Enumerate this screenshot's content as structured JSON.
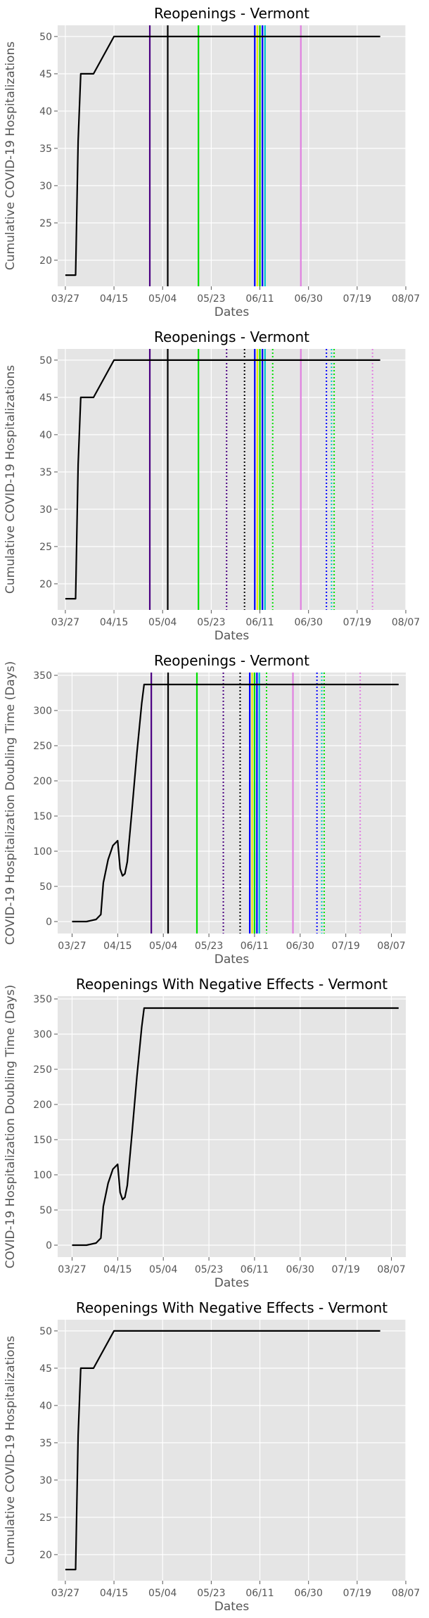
{
  "colors": {
    "panel_bg": "#e5e5e5",
    "grid": "#ffffff",
    "data_line": "#000000",
    "purple": "#4b0082",
    "black": "#000000",
    "green": "#00e000",
    "blue": "#0000ff",
    "yellow": "#e8e800",
    "cyan": "#00c8c8",
    "violet": "#e080e0"
  },
  "chart_data": [
    {
      "type": "line",
      "title": "Reopenings - Vermont",
      "xlabel": "Dates",
      "ylabel": "Cumulative COVID-19 Hospitalizations",
      "xticks": [
        "03/27",
        "04/15",
        "05/04",
        "05/23",
        "06/11",
        "06/30",
        "07/19",
        "08/07"
      ],
      "yticks": [
        20,
        25,
        30,
        35,
        40,
        45,
        50
      ],
      "xlim": [
        "03/24",
        "08/07"
      ],
      "ylim": [
        16.5,
        51.5
      ],
      "grid": true,
      "series": [
        {
          "color": "#000000",
          "points": [
            [
              "03/27",
              18
            ],
            [
              "03/31",
              18
            ],
            [
              "04/01",
              36
            ],
            [
              "04/02",
              45
            ],
            [
              "04/07",
              45
            ],
            [
              "04/15",
              50
            ],
            [
              "07/28",
              50
            ]
          ]
        }
      ],
      "vlines": [
        {
          "date": "04/29",
          "color": "#4b0082",
          "style": "solid"
        },
        {
          "date": "05/06",
          "color": "#000000",
          "style": "solid"
        },
        {
          "date": "05/18",
          "color": "#00e000",
          "style": "solid"
        },
        {
          "date": "06/09",
          "color": "#0000ff",
          "style": "solid"
        },
        {
          "date": "06/10",
          "color": "#e8e800",
          "style": "solid"
        },
        {
          "date": "06/11",
          "color": "#00e000",
          "style": "solid"
        },
        {
          "date": "06/12",
          "color": "#0000ff",
          "style": "solid"
        },
        {
          "date": "06/13",
          "color": "#00c8c8",
          "style": "solid"
        },
        {
          "date": "06/27",
          "color": "#e080e0",
          "style": "solid"
        }
      ]
    },
    {
      "type": "line",
      "title": "Reopenings - Vermont",
      "xlabel": "Dates",
      "ylabel": "Cumulative COVID-19 Hospitalizations",
      "xticks": [
        "03/27",
        "04/15",
        "05/04",
        "05/23",
        "06/11",
        "06/30",
        "07/19",
        "08/07"
      ],
      "yticks": [
        20,
        25,
        30,
        35,
        40,
        45,
        50
      ],
      "xlim": [
        "03/24",
        "08/07"
      ],
      "ylim": [
        16.5,
        51.5
      ],
      "grid": true,
      "series": [
        {
          "color": "#000000",
          "points": [
            [
              "03/27",
              18
            ],
            [
              "03/31",
              18
            ],
            [
              "04/01",
              36
            ],
            [
              "04/02",
              45
            ],
            [
              "04/07",
              45
            ],
            [
              "04/15",
              50
            ],
            [
              "07/28",
              50
            ]
          ]
        }
      ],
      "vlines": [
        {
          "date": "04/29",
          "color": "#4b0082",
          "style": "solid"
        },
        {
          "date": "05/06",
          "color": "#000000",
          "style": "solid"
        },
        {
          "date": "05/18",
          "color": "#00e000",
          "style": "solid"
        },
        {
          "date": "05/29",
          "color": "#4b0082",
          "style": "dotted"
        },
        {
          "date": "06/05",
          "color": "#000000",
          "style": "dotted"
        },
        {
          "date": "06/09",
          "color": "#0000ff",
          "style": "solid"
        },
        {
          "date": "06/10",
          "color": "#e8e800",
          "style": "solid"
        },
        {
          "date": "06/11",
          "color": "#00e000",
          "style": "solid"
        },
        {
          "date": "06/12",
          "color": "#0000ff",
          "style": "solid"
        },
        {
          "date": "06/13",
          "color": "#00c8c8",
          "style": "solid"
        },
        {
          "date": "06/16",
          "color": "#00e000",
          "style": "dotted"
        },
        {
          "date": "06/27",
          "color": "#e080e0",
          "style": "solid"
        },
        {
          "date": "07/07",
          "color": "#0000ff",
          "style": "dotted"
        },
        {
          "date": "07/09",
          "color": "#00c8c8",
          "style": "dotted"
        },
        {
          "date": "07/10",
          "color": "#00e000",
          "style": "dotted"
        },
        {
          "date": "07/25",
          "color": "#e080e0",
          "style": "dotted"
        }
      ]
    },
    {
      "type": "line",
      "title": "Reopenings - Vermont",
      "xlabel": "Dates",
      "ylabel": "COVID-19 Hospitalization Doubling Time (Days)",
      "xticks": [
        "03/27",
        "04/15",
        "05/04",
        "05/23",
        "06/11",
        "06/30",
        "07/19",
        "08/07"
      ],
      "yticks": [
        0,
        50,
        100,
        150,
        200,
        250,
        300,
        350
      ],
      "xlim": [
        "03/21",
        "08/13"
      ],
      "ylim": [
        -17,
        354
      ],
      "grid": true,
      "series": [
        {
          "color": "#000000",
          "points": [
            [
              "03/27",
              0
            ],
            [
              "04/02",
              0
            ],
            [
              "04/06",
              3
            ],
            [
              "04/08",
              10
            ],
            [
              "04/09",
              55
            ],
            [
              "04/11",
              88
            ],
            [
              "04/13",
              108
            ],
            [
              "04/15",
              115
            ],
            [
              "04/16",
              75
            ],
            [
              "04/17",
              65
            ],
            [
              "04/18",
              68
            ],
            [
              "04/19",
              85
            ],
            [
              "04/21",
              160
            ],
            [
              "04/23",
              240
            ],
            [
              "04/25",
              310
            ],
            [
              "04/26",
              337
            ],
            [
              "08/10",
              337
            ]
          ]
        }
      ],
      "vlines": [
        {
          "date": "04/29",
          "color": "#4b0082",
          "style": "solid"
        },
        {
          "date": "05/06",
          "color": "#000000",
          "style": "solid"
        },
        {
          "date": "05/18",
          "color": "#00e000",
          "style": "solid"
        },
        {
          "date": "05/29",
          "color": "#4b0082",
          "style": "dotted"
        },
        {
          "date": "06/05",
          "color": "#000000",
          "style": "dotted"
        },
        {
          "date": "06/09",
          "color": "#0000ff",
          "style": "solid"
        },
        {
          "date": "06/10",
          "color": "#e8e800",
          "style": "solid"
        },
        {
          "date": "06/11",
          "color": "#00e000",
          "style": "solid"
        },
        {
          "date": "06/12",
          "color": "#0000ff",
          "style": "solid"
        },
        {
          "date": "06/13",
          "color": "#00c8c8",
          "style": "solid"
        },
        {
          "date": "06/16",
          "color": "#00e000",
          "style": "dotted"
        },
        {
          "date": "06/27",
          "color": "#e080e0",
          "style": "solid"
        },
        {
          "date": "07/07",
          "color": "#0000ff",
          "style": "dotted"
        },
        {
          "date": "07/09",
          "color": "#00c8c8",
          "style": "dotted"
        },
        {
          "date": "07/10",
          "color": "#00e000",
          "style": "dotted"
        },
        {
          "date": "07/25",
          "color": "#e080e0",
          "style": "dotted"
        }
      ]
    },
    {
      "type": "line",
      "title": "Reopenings With Negative Effects - Vermont",
      "xlabel": "Dates",
      "ylabel": "COVID-19 Hospitalization Doubling Time (Days)",
      "xticks": [
        "03/27",
        "04/15",
        "05/04",
        "05/23",
        "06/11",
        "06/30",
        "07/19",
        "08/07"
      ],
      "yticks": [
        0,
        50,
        100,
        150,
        200,
        250,
        300,
        350
      ],
      "xlim": [
        "03/21",
        "08/13"
      ],
      "ylim": [
        -17,
        354
      ],
      "grid": true,
      "series": [
        {
          "color": "#000000",
          "points": [
            [
              "03/27",
              0
            ],
            [
              "04/02",
              0
            ],
            [
              "04/06",
              3
            ],
            [
              "04/08",
              10
            ],
            [
              "04/09",
              55
            ],
            [
              "04/11",
              88
            ],
            [
              "04/13",
              108
            ],
            [
              "04/15",
              115
            ],
            [
              "04/16",
              75
            ],
            [
              "04/17",
              65
            ],
            [
              "04/18",
              68
            ],
            [
              "04/19",
              85
            ],
            [
              "04/21",
              160
            ],
            [
              "04/23",
              240
            ],
            [
              "04/25",
              310
            ],
            [
              "04/26",
              337
            ],
            [
              "08/10",
              337
            ]
          ]
        }
      ],
      "vlines": []
    },
    {
      "type": "line",
      "title": "Reopenings With Negative Effects - Vermont",
      "xlabel": "Dates",
      "ylabel": "Cumulative COVID-19 Hospitalizations",
      "xticks": [
        "03/27",
        "04/15",
        "05/04",
        "05/23",
        "06/11",
        "06/30",
        "07/19",
        "08/07"
      ],
      "yticks": [
        20,
        25,
        30,
        35,
        40,
        45,
        50
      ],
      "xlim": [
        "03/24",
        "08/07"
      ],
      "ylim": [
        16.5,
        51.5
      ],
      "grid": true,
      "series": [
        {
          "color": "#000000",
          "points": [
            [
              "03/27",
              18
            ],
            [
              "03/31",
              18
            ],
            [
              "04/01",
              36
            ],
            [
              "04/02",
              45
            ],
            [
              "04/07",
              45
            ],
            [
              "04/15",
              50
            ],
            [
              "07/28",
              50
            ]
          ]
        }
      ],
      "vlines": []
    }
  ]
}
